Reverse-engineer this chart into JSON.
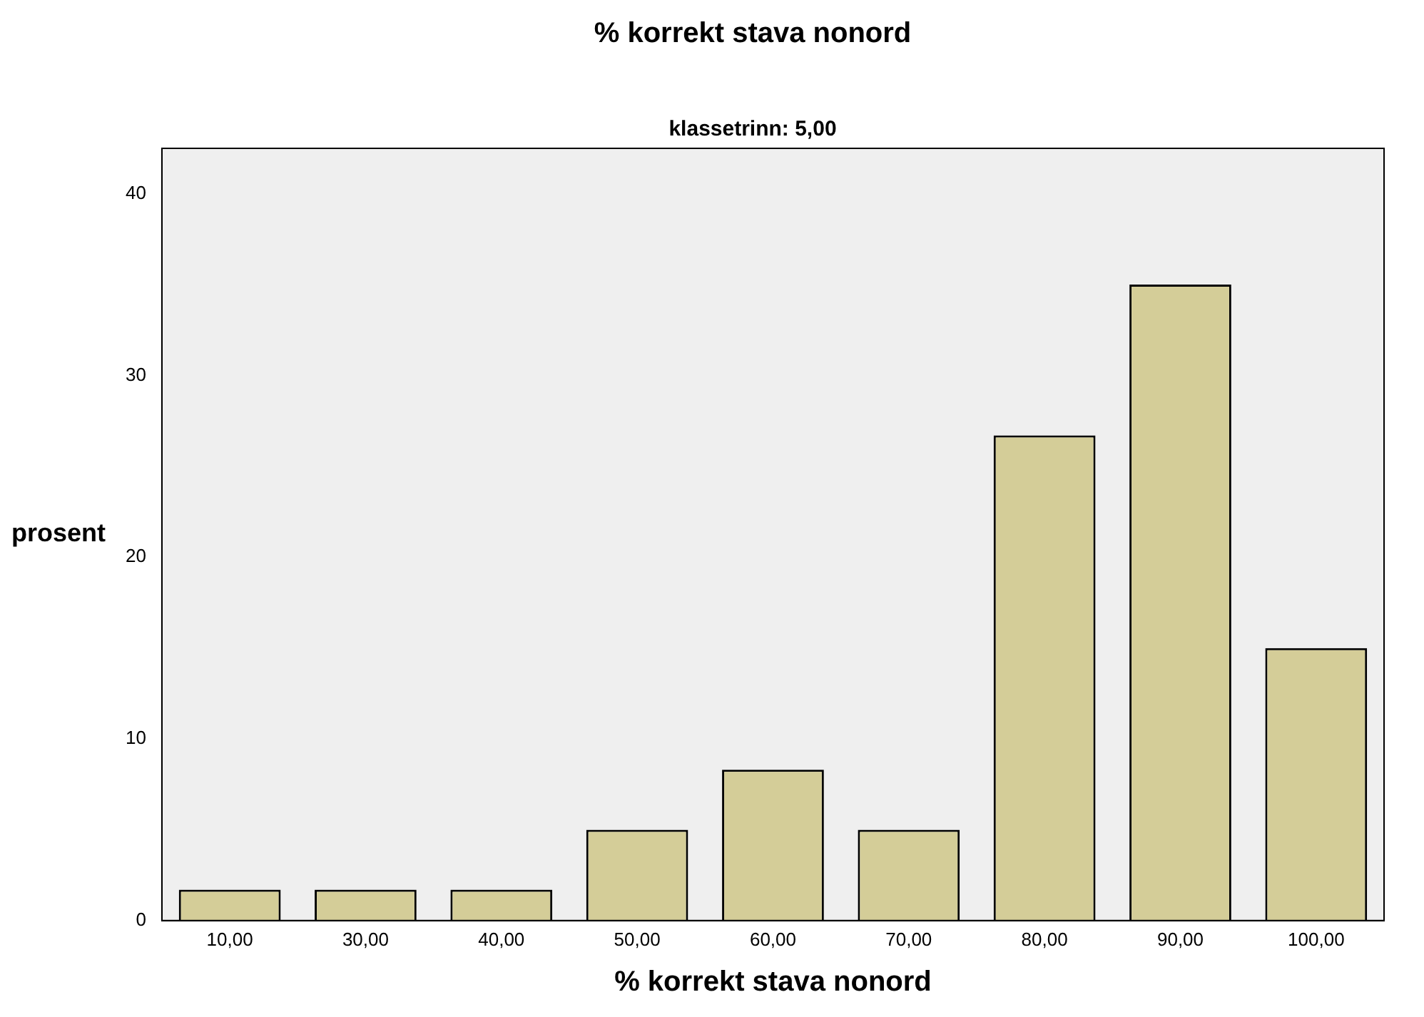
{
  "chart_data": {
    "type": "bar",
    "title": "% korrekt stava nonord",
    "subtitle": "klassetrinn: 5,00",
    "xlabel": "% korrekt stava nonord",
    "ylabel": "prosent",
    "categories": [
      "10,00",
      "30,00",
      "40,00",
      "50,00",
      "60,00",
      "70,00",
      "80,00",
      "90,00",
      "100,00"
    ],
    "values": [
      1.7,
      1.7,
      1.7,
      5.0,
      8.3,
      5.0,
      26.7,
      35.0,
      15.0
    ],
    "color": "#d4cd98",
    "ylim": [
      0,
      42.5
    ],
    "yticks": [
      0,
      10,
      20,
      30,
      40
    ],
    "grid": false,
    "legend": false
  }
}
